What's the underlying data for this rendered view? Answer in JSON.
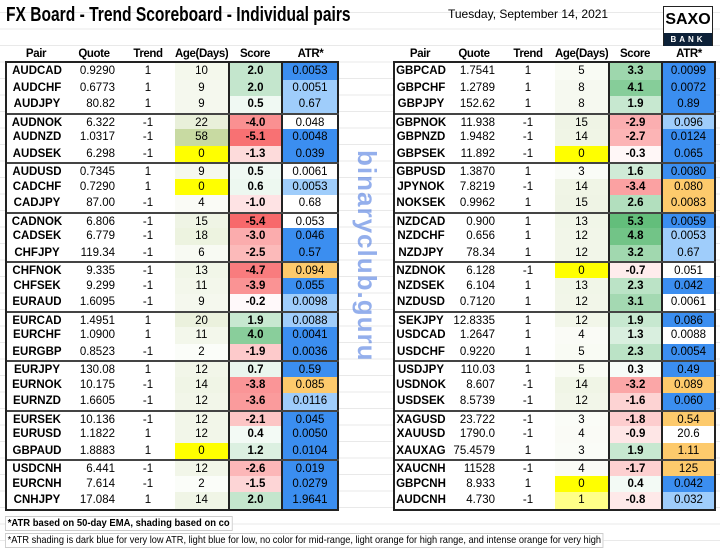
{
  "title": "FX Board - Trend Scoreboard - Individual pairs",
  "date": "Tuesday, September 14, 2021",
  "logo": {
    "top": "SAXO",
    "bottom": "BANK"
  },
  "headers": [
    "Pair",
    "Quote",
    "Trend",
    "Age(Days)",
    "Score",
    "ATR*"
  ],
  "colors": {
    "atr_dark": "#3b8ef0",
    "atr_light": "#9fcdfb",
    "atr_orange": "#fdca6c",
    "age_zero": "#ffff00",
    "age_one": "#ffff88",
    "score_pos": "#63be7b",
    "score_neg": "#f8696b",
    "age_max": "#c4d79b"
  },
  "left": [
    {
      "pair": "AUDCAD",
      "quote": "0.9290",
      "trend": "1",
      "age": "10",
      "score": "2.0",
      "atr": "0.0053",
      "shade": "d"
    },
    {
      "pair": "AUDCHF",
      "quote": "0.6773",
      "trend": "1",
      "age": "9",
      "score": "2.0",
      "atr": "0.0051",
      "shade": "l"
    },
    {
      "pair": "AUDJPY",
      "quote": "80.82",
      "trend": "1",
      "age": "9",
      "score": "0.5",
      "atr": "0.67",
      "shade": "l"
    },
    {
      "pair": "AUDNOK",
      "quote": "6.322",
      "trend": "-1",
      "age": "22",
      "score": "-4.0",
      "atr": "0.048",
      "shade": "n"
    },
    {
      "pair": "AUDNZD",
      "quote": "1.0317",
      "trend": "-1",
      "age": "58",
      "score": "-5.1",
      "atr": "0.0048",
      "shade": "d"
    },
    {
      "pair": "AUDSEK",
      "quote": "6.298",
      "trend": "-1",
      "age": "0",
      "score": "-1.3",
      "atr": "0.039",
      "shade": "d"
    },
    {
      "pair": "AUDUSD",
      "quote": "0.7345",
      "trend": "1",
      "age": "9",
      "score": "0.5",
      "atr": "0.0061",
      "shade": "n"
    },
    {
      "pair": "CADCHF",
      "quote": "0.7290",
      "trend": "1",
      "age": "0",
      "score": "0.6",
      "atr": "0.0053",
      "shade": "l"
    },
    {
      "pair": "CADJPY",
      "quote": "87.00",
      "trend": "-1",
      "age": "4",
      "score": "-1.0",
      "atr": "0.68",
      "shade": "n"
    },
    {
      "pair": "CADNOK",
      "quote": "6.806",
      "trend": "-1",
      "age": "15",
      "score": "-5.4",
      "atr": "0.053",
      "shade": "n"
    },
    {
      "pair": "CADSEK",
      "quote": "6.779",
      "trend": "-1",
      "age": "18",
      "score": "-3.0",
      "atr": "0.046",
      "shade": "d"
    },
    {
      "pair": "CHFJPY",
      "quote": "119.34",
      "trend": "-1",
      "age": "6",
      "score": "-2.5",
      "atr": "0.57",
      "shade": "d"
    },
    {
      "pair": "CHFNOK",
      "quote": "9.335",
      "trend": "-1",
      "age": "13",
      "score": "-4.7",
      "atr": "0.094",
      "shade": "o"
    },
    {
      "pair": "CHFSEK",
      "quote": "9.299",
      "trend": "-1",
      "age": "11",
      "score": "-3.9",
      "atr": "0.055",
      "shade": "d"
    },
    {
      "pair": "EURAUD",
      "quote": "1.6095",
      "trend": "-1",
      "age": "9",
      "score": "-0.2",
      "atr": "0.0098",
      "shade": "l"
    },
    {
      "pair": "EURCAD",
      "quote": "1.4951",
      "trend": "1",
      "age": "20",
      "score": "1.9",
      "atr": "0.0088",
      "shade": "l"
    },
    {
      "pair": "EURCHF",
      "quote": "1.0900",
      "trend": "1",
      "age": "11",
      "score": "4.0",
      "atr": "0.0041",
      "shade": "d"
    },
    {
      "pair": "EURGBP",
      "quote": "0.8523",
      "trend": "-1",
      "age": "2",
      "score": "-1.9",
      "atr": "0.0036",
      "shade": "d"
    },
    {
      "pair": "EURJPY",
      "quote": "130.08",
      "trend": "1",
      "age": "12",
      "score": "0.7",
      "atr": "0.59",
      "shade": "d"
    },
    {
      "pair": "EURNOK",
      "quote": "10.175",
      "trend": "-1",
      "age": "14",
      "score": "-3.8",
      "atr": "0.085",
      "shade": "o"
    },
    {
      "pair": "EURNZD",
      "quote": "1.6605",
      "trend": "-1",
      "age": "12",
      "score": "-3.6",
      "atr": "0.0116",
      "shade": "l"
    },
    {
      "pair": "EURSEK",
      "quote": "10.136",
      "trend": "-1",
      "age": "12",
      "score": "-2.1",
      "atr": "0.045",
      "shade": "d"
    },
    {
      "pair": "EURUSD",
      "quote": "1.1822",
      "trend": "1",
      "age": "12",
      "score": "0.4",
      "atr": "0.0050",
      "shade": "d"
    },
    {
      "pair": "GBPAUD",
      "quote": "1.8883",
      "trend": "1",
      "age": "0",
      "score": "1.2",
      "atr": "0.0104",
      "shade": "d"
    },
    {
      "pair": "USDCNH",
      "quote": "6.441",
      "trend": "-1",
      "age": "12",
      "score": "-2.6",
      "atr": "0.019",
      "shade": "d"
    },
    {
      "pair": "EURCNH",
      "quote": "7.614",
      "trend": "-1",
      "age": "2",
      "score": "-1.5",
      "atr": "0.0279",
      "shade": "d"
    },
    {
      "pair": "CNHJPY",
      "quote": "17.084",
      "trend": "1",
      "age": "14",
      "score": "2.0",
      "atr": "1.9641",
      "shade": "d"
    }
  ],
  "right": [
    {
      "pair": "GBPCAD",
      "quote": "1.7541",
      "trend": "1",
      "age": "5",
      "score": "3.3",
      "atr": "0.0099",
      "shade": "d"
    },
    {
      "pair": "GBPCHF",
      "quote": "1.2789",
      "trend": "1",
      "age": "8",
      "score": "4.1",
      "atr": "0.0072",
      "shade": "d"
    },
    {
      "pair": "GBPJPY",
      "quote": "152.62",
      "trend": "1",
      "age": "8",
      "score": "1.9",
      "atr": "0.89",
      "shade": "d"
    },
    {
      "pair": "GBPNOK",
      "quote": "11.938",
      "trend": "-1",
      "age": "15",
      "score": "-2.9",
      "atr": "0.096",
      "shade": "l"
    },
    {
      "pair": "GBPNZD",
      "quote": "1.9482",
      "trend": "-1",
      "age": "14",
      "score": "-2.7",
      "atr": "0.0124",
      "shade": "d"
    },
    {
      "pair": "GBPSEK",
      "quote": "11.892",
      "trend": "-1",
      "age": "0",
      "score": "-0.3",
      "atr": "0.065",
      "shade": "d"
    },
    {
      "pair": "GBPUSD",
      "quote": "1.3870",
      "trend": "1",
      "age": "3",
      "score": "1.6",
      "atr": "0.0080",
      "shade": "d"
    },
    {
      "pair": "JPYNOK",
      "quote": "7.8219",
      "trend": "-1",
      "age": "14",
      "score": "-3.4",
      "atr": "0.080",
      "shade": "o"
    },
    {
      "pair": "NOKSEK",
      "quote": "0.9962",
      "trend": "1",
      "age": "15",
      "score": "2.6",
      "atr": "0.0083",
      "shade": "o"
    },
    {
      "pair": "NZDCAD",
      "quote": "0.900",
      "trend": "1",
      "age": "13",
      "score": "5.3",
      "atr": "0.0059",
      "shade": "d"
    },
    {
      "pair": "NZDCHF",
      "quote": "0.656",
      "trend": "1",
      "age": "12",
      "score": "4.8",
      "atr": "0.0053",
      "shade": "l"
    },
    {
      "pair": "NZDJPY",
      "quote": "78.34",
      "trend": "1",
      "age": "12",
      "score": "3.2",
      "atr": "0.67",
      "shade": "l"
    },
    {
      "pair": "NZDNOK",
      "quote": "6.128",
      "trend": "-1",
      "age": "0",
      "score": "-0.7",
      "atr": "0.051",
      "shade": "n"
    },
    {
      "pair": "NZDSEK",
      "quote": "6.104",
      "trend": "1",
      "age": "13",
      "score": "2.3",
      "atr": "0.042",
      "shade": "d"
    },
    {
      "pair": "NZDUSD",
      "quote": "0.7120",
      "trend": "1",
      "age": "12",
      "score": "3.1",
      "atr": "0.0061",
      "shade": "n"
    },
    {
      "pair": "SEKJPY",
      "quote": "12.8335",
      "trend": "1",
      "age": "12",
      "score": "1.9",
      "atr": "0.086",
      "shade": "d"
    },
    {
      "pair": "USDCAD",
      "quote": "1.2647",
      "trend": "1",
      "age": "4",
      "score": "1.3",
      "atr": "0.0088",
      "shade": "n"
    },
    {
      "pair": "USDCHF",
      "quote": "0.9220",
      "trend": "1",
      "age": "5",
      "score": "2.3",
      "atr": "0.0054",
      "shade": "d"
    },
    {
      "pair": "USDJPY",
      "quote": "110.03",
      "trend": "1",
      "age": "5",
      "score": "0.3",
      "atr": "0.49",
      "shade": "d"
    },
    {
      "pair": "USDNOK",
      "quote": "8.607",
      "trend": "-1",
      "age": "14",
      "score": "-3.2",
      "atr": "0.089",
      "shade": "o"
    },
    {
      "pair": "USDSEK",
      "quote": "8.5739",
      "trend": "-1",
      "age": "12",
      "score": "-1.6",
      "atr": "0.060",
      "shade": "d"
    },
    {
      "pair": "XAGUSD",
      "quote": "23.722",
      "trend": "-1",
      "age": "3",
      "score": "-1.8",
      "atr": "0.54",
      "shade": "o"
    },
    {
      "pair": "XAUUSD",
      "quote": "1790.0",
      "trend": "-1",
      "age": "4",
      "score": "-0.9",
      "atr": "20.6",
      "shade": "n"
    },
    {
      "pair": "XAUXAG",
      "quote": "75.4579",
      "trend": "1",
      "age": "3",
      "score": "1.9",
      "atr": "1.11",
      "shade": "o"
    },
    {
      "pair": "XAUCNH",
      "quote": "11528",
      "trend": "-1",
      "age": "4",
      "score": "-1.7",
      "atr": "125",
      "shade": "o"
    },
    {
      "pair": "GBPCNH",
      "quote": "8.933",
      "trend": "1",
      "age": "0",
      "score": "0.4",
      "atr": "0.042",
      "shade": "d"
    },
    {
      "pair": "AUDCNH",
      "quote": "4.730",
      "trend": "-1",
      "age": "1",
      "score": "-0.8",
      "atr": "0.032",
      "shade": "l"
    }
  ],
  "footnote1": "*ATR based on 50-day EMA, shading based on co",
  "footnote2": "*ATR shading is dark blue for very low ATR, light blue for low, no color for mid-range, light orange for high range, and intense orange for very high",
  "watermark": "binaryclub.guru"
}
